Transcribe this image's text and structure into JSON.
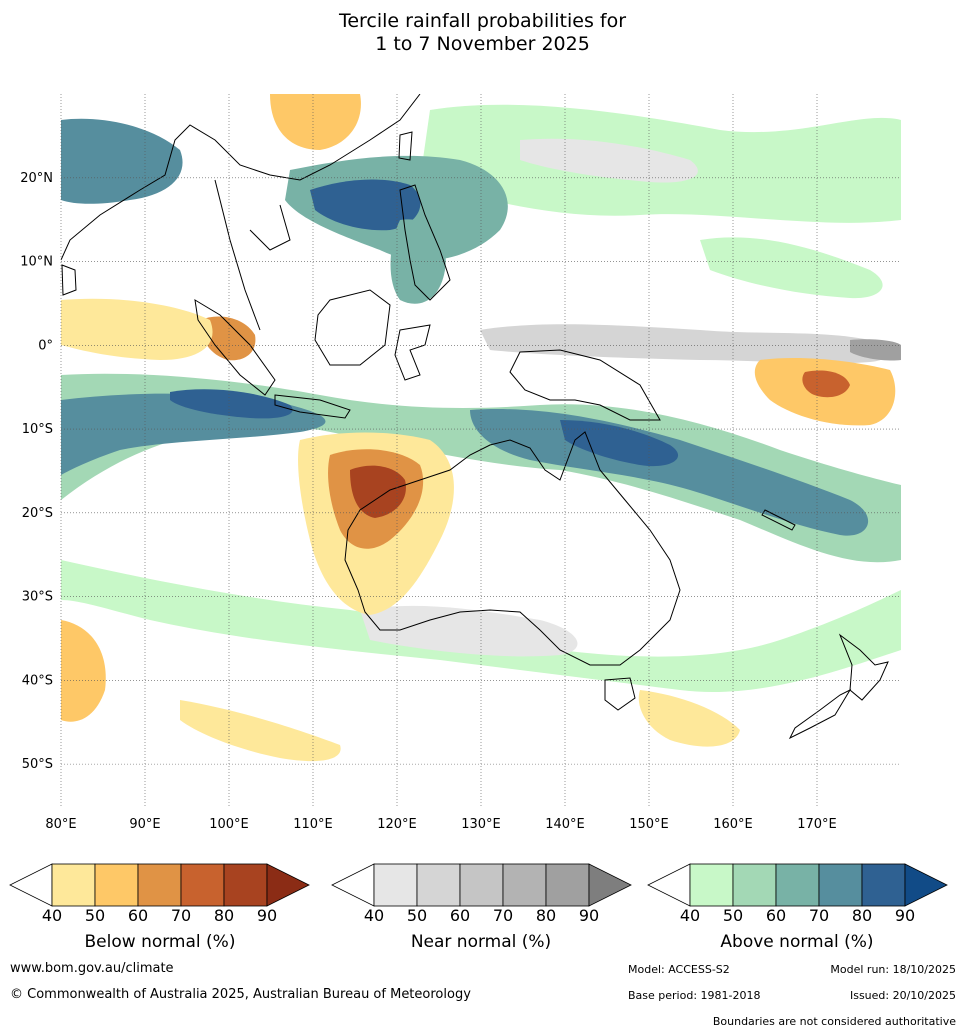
{
  "title": {
    "line1": "Tercile rainfall probabilities for",
    "line2": "1 to 7 November 2025"
  },
  "map": {
    "lon_range": [
      80,
      180
    ],
    "lat_range": [
      -55,
      30
    ],
    "lon_ticks": [
      "80°E",
      "90°E",
      "100°E",
      "110°E",
      "120°E",
      "130°E",
      "140°E",
      "150°E",
      "160°E",
      "170°E"
    ],
    "lat_ticks": [
      "20°N",
      "10°N",
      "0°",
      "10°S",
      "20°S",
      "30°S",
      "40°S",
      "50°S"
    ]
  },
  "colorbars": [
    {
      "name": "below",
      "label": "Below normal (%)",
      "colors": [
        "#ffffff",
        "#fee89a",
        "#fec867",
        "#e09345",
        "#c8622e",
        "#a84320",
        "#8b2c15"
      ],
      "ticks": [
        "40",
        "50",
        "60",
        "70",
        "80",
        "90"
      ]
    },
    {
      "name": "near",
      "label": "Near normal (%)",
      "colors": [
        "#ffffff",
        "#e6e6e6",
        "#d5d5d5",
        "#c5c5c5",
        "#b3b3b3",
        "#a0a0a0",
        "#7e7e7e"
      ],
      "ticks": [
        "40",
        "50",
        "60",
        "70",
        "80",
        "90"
      ]
    },
    {
      "name": "above",
      "label": "Above normal (%)",
      "colors": [
        "#ffffff",
        "#c8f8c8",
        "#a3d8b5",
        "#78b2a6",
        "#568e9e",
        "#2f6192",
        "#114b87"
      ],
      "ticks": [
        "40",
        "50",
        "60",
        "70",
        "80",
        "90"
      ]
    }
  ],
  "footer": {
    "url": "www.bom.gov.au/climate",
    "copyright": "© Commonwealth of Australia 2025, Australian Bureau of Meteorology",
    "model": "Model: ACCESS-S2",
    "model_run": "Model run: 18/10/2025",
    "base_period": "Base period: 1981-2018",
    "issued": "Issued: 20/10/2025",
    "disclaimer": "Boundaries are not considered authoritative"
  }
}
